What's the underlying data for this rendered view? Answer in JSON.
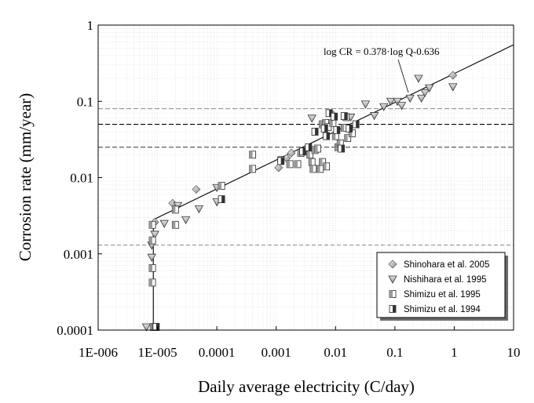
{
  "chart_data": {
    "type": "scatter",
    "x_scale": "log",
    "y_scale": "log",
    "xlabel": "Daily average electricity (C/day)",
    "ylabel": "Corrosion rate (mm/year)",
    "xlim": [
      1e-06,
      10
    ],
    "ylim": [
      0.0001,
      1
    ],
    "x_ticks": [
      "1E-006",
      "1E-005",
      "0.0001",
      "0.001",
      "0.01",
      "0.1",
      "1",
      "10"
    ],
    "y_ticks": [
      "0.0001",
      "0.001",
      "0.01",
      "0.1",
      "1"
    ],
    "grid": true,
    "legend_position": "bottom-right",
    "annotation": "log CR = 0.378·log Q-0.636",
    "reference_lines_y": [
      0.08,
      0.05,
      0.025,
      0.0013
    ],
    "fit_line": {
      "slope": 0.378,
      "intercept": -0.636,
      "vertical_segment": {
        "x": 8.5e-06,
        "y_from": 0.0001,
        "y_to": 0.0026
      }
    },
    "series": [
      {
        "name": "Shinohara et al. 2005",
        "marker": "diamond",
        "points": [
          [
            9e-06,
            0.0026
          ],
          [
            1.8e-05,
            0.0046
          ],
          [
            4.5e-05,
            0.007
          ],
          [
            0.0011,
            0.0135
          ],
          [
            0.0015,
            0.018
          ],
          [
            0.0018,
            0.021
          ],
          [
            0.0085,
            0.07
          ],
          [
            0.95,
            0.22
          ]
        ]
      },
      {
        "name": "Nishihara et al. 1995",
        "marker": "triangle-down",
        "points": [
          [
            6.5e-06,
            0.00011
          ],
          [
            8e-06,
            0.0009
          ],
          [
            8e-06,
            0.0013
          ],
          [
            9e-06,
            0.0018
          ],
          [
            1.3e-05,
            0.0025
          ],
          [
            2.2e-05,
            0.0043
          ],
          [
            3e-05,
            0.0028
          ],
          [
            5e-05,
            0.0039
          ],
          [
            0.0001,
            0.0048
          ],
          [
            0.0001,
            0.0074
          ],
          [
            0.004,
            0.06
          ],
          [
            0.018,
            0.062
          ],
          [
            0.032,
            0.092
          ],
          [
            0.045,
            0.065
          ],
          [
            0.065,
            0.085
          ],
          [
            0.085,
            0.1
          ],
          [
            0.11,
            0.1
          ],
          [
            0.13,
            0.088
          ],
          [
            0.18,
            0.11
          ],
          [
            0.25,
            0.2
          ],
          [
            0.28,
            0.11
          ],
          [
            0.32,
            0.13
          ],
          [
            0.38,
            0.15
          ],
          [
            0.95,
            0.155
          ]
        ]
      },
      {
        "name": "Shimizu et al. 1995",
        "marker": "square-left",
        "points": [
          [
            8.5e-06,
            0.00011
          ],
          [
            9.2e-06,
            0.00011
          ],
          [
            8.2e-06,
            0.00042
          ],
          [
            8.2e-06,
            0.00065
          ],
          [
            8.2e-06,
            0.0015
          ],
          [
            8.2e-06,
            0.0024
          ],
          [
            2e-05,
            0.0024
          ],
          [
            2e-05,
            0.0038
          ],
          [
            0.00012,
            0.0078
          ],
          [
            0.0004,
            0.013
          ],
          [
            0.0004,
            0.02
          ],
          [
            0.0012,
            0.017
          ],
          [
            0.0017,
            0.015
          ],
          [
            0.0023,
            0.015
          ],
          [
            0.0026,
            0.021
          ],
          [
            0.003,
            0.022
          ],
          [
            0.0033,
            0.023
          ],
          [
            0.0037,
            0.02
          ],
          [
            0.004,
            0.016
          ],
          [
            0.0042,
            0.013
          ],
          [
            0.0045,
            0.023
          ],
          [
            0.005,
            0.024
          ],
          [
            0.0055,
            0.013
          ],
          [
            0.006,
            0.016
          ],
          [
            0.007,
            0.014
          ],
          [
            0.006,
            0.05
          ],
          [
            0.0068,
            0.052
          ],
          [
            0.0075,
            0.046
          ],
          [
            0.009,
            0.052
          ],
          [
            0.01,
            0.035
          ],
          [
            0.011,
            0.025
          ],
          [
            0.012,
            0.028
          ],
          [
            0.014,
            0.045
          ],
          [
            0.015,
            0.062
          ],
          [
            0.016,
            0.033
          ],
          [
            0.019,
            0.038
          ]
        ]
      },
      {
        "name": "Shimizu et al. 1994",
        "marker": "square-right",
        "points": [
          [
            9.5e-06,
            0.00011
          ],
          [
            0.00012,
            0.0052
          ],
          [
            0.0012,
            0.0165
          ],
          [
            0.0028,
            0.022
          ],
          [
            0.0035,
            0.025
          ],
          [
            0.0045,
            0.04
          ],
          [
            0.0065,
            0.044
          ],
          [
            0.007,
            0.035
          ],
          [
            0.0078,
            0.07
          ],
          [
            0.0095,
            0.063
          ],
          [
            0.0105,
            0.042
          ],
          [
            0.0125,
            0.024
          ],
          [
            0.014,
            0.064
          ],
          [
            0.017,
            0.044
          ],
          [
            0.022,
            0.05
          ]
        ]
      }
    ]
  }
}
